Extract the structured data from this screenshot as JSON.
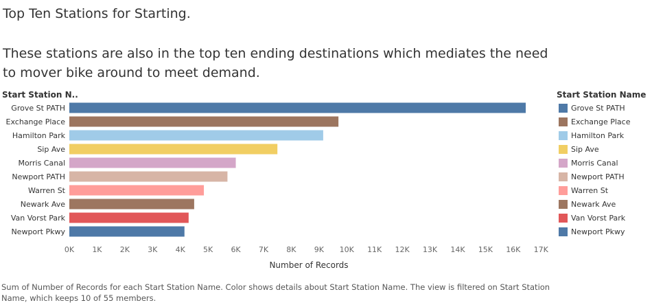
{
  "title": "Top Ten Stations for Starting.",
  "subtitle": "These stations are also in the top ten ending destinations which mediates the need to mover bike around to meet demand.",
  "footnote": "Sum of Number of Records for each Start Station Name.  Color shows details about Start Station Name. The view is filtered on Start Station Name, which keeps 10 of 55 members.",
  "chart_data": {
    "type": "bar",
    "orientation": "horizontal",
    "row_header": "Start Station N..",
    "xlabel": "Number of Records",
    "legend_title": "Start Station Name",
    "legend_position": "right",
    "grid": false,
    "xlim": [
      0,
      17000
    ],
    "ticks": [
      {
        "value": 0,
        "label": "0K"
      },
      {
        "value": 1000,
        "label": "1K"
      },
      {
        "value": 2000,
        "label": "2K"
      },
      {
        "value": 3000,
        "label": "3K"
      },
      {
        "value": 4000,
        "label": "4K"
      },
      {
        "value": 5000,
        "label": "5K"
      },
      {
        "value": 6000,
        "label": "6K"
      },
      {
        "value": 7000,
        "label": "7K"
      },
      {
        "value": 8000,
        "label": "8K"
      },
      {
        "value": 9000,
        "label": "9K"
      },
      {
        "value": 10000,
        "label": "10K"
      },
      {
        "value": 11000,
        "label": "11K"
      },
      {
        "value": 12000,
        "label": "12K"
      },
      {
        "value": 13000,
        "label": "13K"
      },
      {
        "value": 14000,
        "label": "14K"
      },
      {
        "value": 15000,
        "label": "15K"
      },
      {
        "value": 16000,
        "label": "16K"
      },
      {
        "value": 17000,
        "label": "17K"
      }
    ],
    "categories": [
      "Grove St PATH",
      "Exchange Place",
      "Hamilton Park",
      "Sip Ave",
      "Morris Canal",
      "Newport PATH",
      "Warren St",
      "Newark Ave",
      "Van Vorst Park",
      "Newport Pkwy"
    ],
    "values": [
      16450,
      9700,
      9150,
      7500,
      6000,
      5700,
      4850,
      4500,
      4300,
      4150
    ],
    "colors": [
      "#4e79a7",
      "#9c755f",
      "#a0cbe8",
      "#f1ce63",
      "#d4a6c8",
      "#d7b5a6",
      "#ff9d9a",
      "#9d7660",
      "#e15759",
      "#4e79a7"
    ]
  }
}
